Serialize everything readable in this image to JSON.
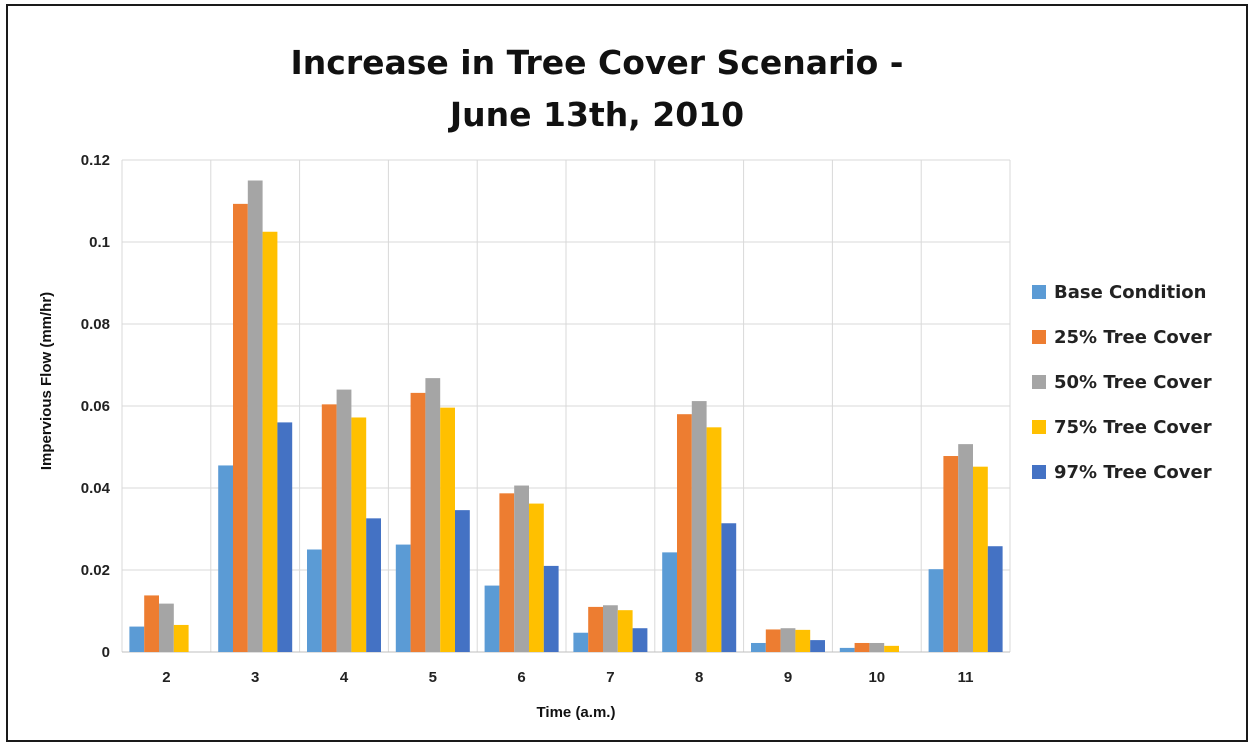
{
  "chart_data": {
    "type": "bar",
    "title_lines": [
      "Increase in Tree Cover Scenario -",
      "June 13th, 2010"
    ],
    "xlabel": "Time (a.m.)",
    "ylabel": "Impervious Flow (mm/hr)",
    "ylim": [
      0,
      0.12
    ],
    "yticks": [
      "0",
      "0.02",
      "0.04",
      "0.06",
      "0.08",
      "0.1",
      "0.12"
    ],
    "ytick_values": [
      0,
      0.02,
      0.04,
      0.06,
      0.08,
      0.1,
      0.12
    ],
    "categories": [
      "2",
      "3",
      "4",
      "5",
      "6",
      "7",
      "8",
      "9",
      "10",
      "11"
    ],
    "grid": true,
    "legend_position": "right",
    "series": [
      {
        "name": "Base Condition",
        "color": "#5B9BD5",
        "values": [
          0.0062,
          0.0455,
          0.025,
          0.0262,
          0.0162,
          0.0047,
          0.0243,
          0.0022,
          0.001,
          0.0202
        ]
      },
      {
        "name": "25% Tree Cover",
        "color": "#ED7D31",
        "values": [
          0.0138,
          0.1093,
          0.0604,
          0.0632,
          0.0387,
          0.011,
          0.058,
          0.0055,
          0.0022,
          0.0478
        ]
      },
      {
        "name": "50% Tree Cover",
        "color": "#A5A5A5",
        "values": [
          0.0118,
          0.115,
          0.064,
          0.0668,
          0.0406,
          0.0114,
          0.0612,
          0.0058,
          0.0022,
          0.0507
        ]
      },
      {
        "name": "75% Tree Cover",
        "color": "#FFC000",
        "values": [
          0.0066,
          0.1025,
          0.0572,
          0.0596,
          0.0362,
          0.0102,
          0.0548,
          0.0054,
          0.0015,
          0.0452
        ]
      },
      {
        "name": "97% Tree Cover",
        "color": "#4472C4",
        "values": [
          0,
          0.056,
          0.0326,
          0.0346,
          0.021,
          0.0058,
          0.0314,
          0.0029,
          0,
          0.0258
        ]
      }
    ]
  }
}
